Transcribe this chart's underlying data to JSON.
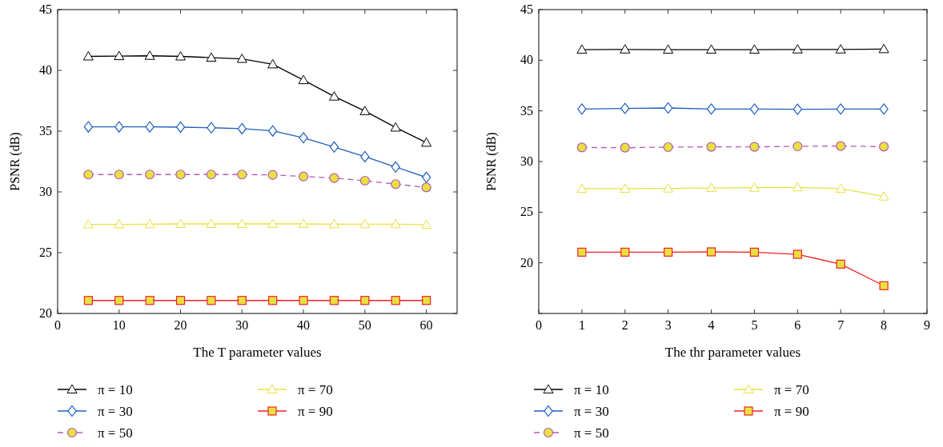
{
  "chart_data": [
    {
      "type": "line",
      "xlabel": "The T parameter values",
      "ylabel": "PSNR (dB)",
      "x": [
        5,
        10,
        15,
        20,
        25,
        30,
        35,
        40,
        45,
        50,
        55,
        60
      ],
      "xlim": [
        0,
        65
      ],
      "xticks": [
        0,
        10,
        20,
        30,
        40,
        50,
        60
      ],
      "ylim": [
        20,
        45
      ],
      "yticks": [
        20,
        25,
        30,
        35,
        40,
        45
      ],
      "grid": false,
      "legend": "bottom",
      "series": [
        {
          "name": "π = 10",
          "color": "#000000",
          "marker": "triangle",
          "line_style": "solid",
          "values": [
            41.15,
            41.18,
            41.2,
            41.15,
            41.05,
            40.95,
            40.5,
            39.2,
            37.85,
            36.65,
            35.3,
            34.05
          ]
        },
        {
          "name": "π = 30",
          "color": "#1f5fbf",
          "marker": "diamond",
          "line_style": "solid",
          "values": [
            35.35,
            35.35,
            35.35,
            35.33,
            35.28,
            35.2,
            35.02,
            34.45,
            33.7,
            32.9,
            32.05,
            31.2
          ]
        },
        {
          "name": "π = 50",
          "color": "#b25ab8",
          "marker": "circle",
          "line_style": "dashed",
          "values": [
            31.43,
            31.43,
            31.43,
            31.43,
            31.43,
            31.43,
            31.4,
            31.27,
            31.14,
            30.92,
            30.64,
            30.37
          ]
        },
        {
          "name": "π = 70",
          "color": "#e8e040",
          "marker": "triangle",
          "line_style": "solid",
          "values": [
            27.33,
            27.33,
            27.35,
            27.37,
            27.37,
            27.37,
            27.37,
            27.37,
            27.35,
            27.35,
            27.35,
            27.3
          ]
        },
        {
          "name": "π = 90",
          "color": "#ee2222",
          "marker": "square",
          "line_style": "solid",
          "values": [
            21.07,
            21.07,
            21.07,
            21.07,
            21.07,
            21.07,
            21.07,
            21.07,
            21.07,
            21.07,
            21.07,
            21.07
          ]
        }
      ]
    },
    {
      "type": "line",
      "xlabel": "The thr parameter values",
      "ylabel": "PSNR (dB)",
      "x": [
        1,
        2,
        3,
        4,
        5,
        6,
        7,
        8
      ],
      "xlim": [
        0,
        9
      ],
      "xticks": [
        0,
        1,
        2,
        3,
        4,
        5,
        6,
        7,
        8,
        9
      ],
      "ylim": [
        15,
        45
      ],
      "yticks": [
        {
          "value": 15,
          "label": null
        },
        20,
        25,
        30,
        35,
        40,
        45
      ],
      "grid": false,
      "legend": "bottom",
      "series": [
        {
          "name": "π = 10",
          "color": "#000000",
          "marker": "triangle",
          "line_style": "solid",
          "values": [
            41.05,
            41.07,
            41.05,
            41.05,
            41.05,
            41.07,
            41.07,
            41.1
          ]
        },
        {
          "name": "π = 30",
          "color": "#1f5fbf",
          "marker": "diamond",
          "line_style": "solid",
          "values": [
            35.18,
            35.24,
            35.29,
            35.18,
            35.18,
            35.16,
            35.18,
            35.18
          ]
        },
        {
          "name": "π = 50",
          "color": "#b25ab8",
          "marker": "circle",
          "line_style": "dashed",
          "values": [
            31.39,
            31.37,
            31.42,
            31.45,
            31.45,
            31.5,
            31.53,
            31.47
          ]
        },
        {
          "name": "π = 70",
          "color": "#e8e040",
          "marker": "triangle",
          "line_style": "solid",
          "values": [
            27.32,
            27.32,
            27.34,
            27.39,
            27.42,
            27.45,
            27.32,
            26.55
          ]
        },
        {
          "name": "π = 90",
          "color": "#ee2222",
          "marker": "square",
          "line_style": "solid",
          "values": [
            21.05,
            21.05,
            21.05,
            21.08,
            21.05,
            20.84,
            19.87,
            17.74
          ]
        }
      ]
    }
  ]
}
